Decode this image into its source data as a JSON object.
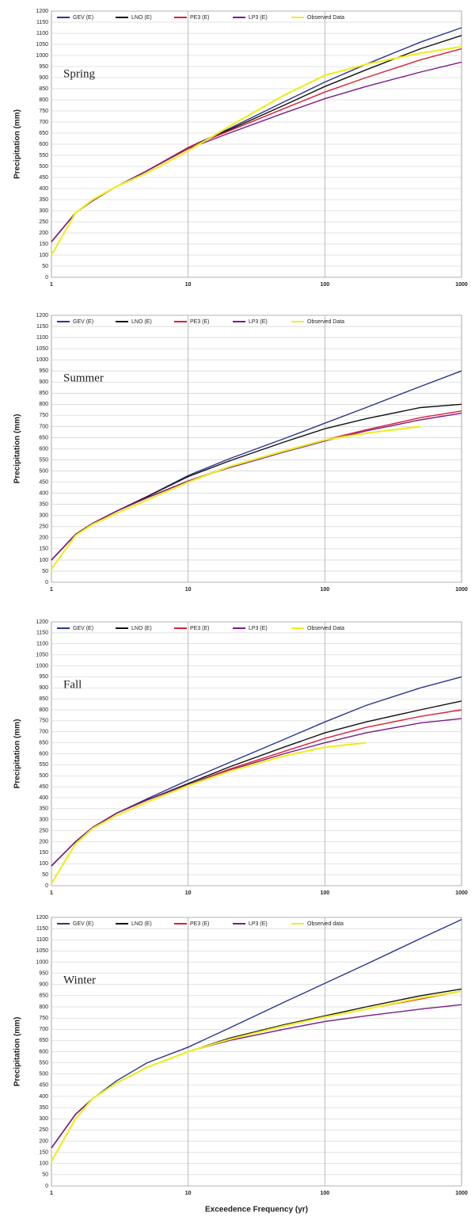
{
  "chart_data": [
    {
      "type": "line",
      "xscale": "log",
      "annotation": "Spring",
      "ylabel": "Precipitation (mm)",
      "grid": true,
      "legend": "top-left",
      "x": [
        1,
        1.5,
        2,
        3,
        5,
        10,
        20,
        50,
        100,
        200,
        500,
        1000
      ],
      "xlim": [
        1,
        1000
      ],
      "xticks": [
        1,
        10,
        100,
        1000
      ],
      "ylim": [
        0,
        1200
      ],
      "yticks": [
        0,
        50,
        100,
        150,
        200,
        250,
        300,
        350,
        400,
        450,
        500,
        550,
        600,
        650,
        700,
        750,
        800,
        850,
        900,
        950,
        1000,
        1050,
        1100,
        1150,
        1200
      ],
      "series": [
        {
          "name": "GEV (E)",
          "color": "#2a3590",
          "values": [
            160,
            290,
            345,
            410,
            480,
            585,
            670,
            790,
            880,
            960,
            1060,
            1125
          ]
        },
        {
          "name": "LNO (E)",
          "color": "#111111",
          "values": [
            160,
            290,
            345,
            410,
            480,
            585,
            665,
            775,
            860,
            935,
            1030,
            1090
          ]
        },
        {
          "name": "PE3 (E)",
          "color": "#d8203a",
          "values": [
            160,
            290,
            345,
            410,
            480,
            585,
            660,
            760,
            835,
            900,
            980,
            1030
          ]
        },
        {
          "name": "LP3 (E)",
          "color": "#7a1a8a",
          "values": [
            160,
            290,
            345,
            410,
            480,
            580,
            650,
            740,
            805,
            860,
            925,
            970
          ]
        },
        {
          "name": "Observed Data",
          "color": "#eeee22",
          "values": [
            100,
            290,
            350,
            410,
            470,
            570,
            680,
            820,
            910,
            960,
            1010,
            1040
          ]
        }
      ]
    },
    {
      "type": "line",
      "xscale": "log",
      "annotation": "Summer",
      "ylabel": "Precipitation (mm)",
      "grid": true,
      "legend": "top-left",
      "x": [
        1,
        1.5,
        2,
        3,
        5,
        10,
        20,
        50,
        100,
        200,
        500,
        1000
      ],
      "xlim": [
        1,
        1000
      ],
      "xticks": [
        1,
        10,
        100,
        1000
      ],
      "ylim": [
        0,
        1200
      ],
      "yticks": [
        0,
        50,
        100,
        150,
        200,
        250,
        300,
        350,
        400,
        450,
        500,
        550,
        600,
        650,
        700,
        750,
        800,
        850,
        900,
        950,
        1000,
        1050,
        1100,
        1150,
        1200
      ],
      "series": [
        {
          "name": "GEV (E)",
          "color": "#2a3590",
          "values": [
            100,
            215,
            265,
            320,
            385,
            480,
            555,
            645,
            715,
            785,
            880,
            950
          ]
        },
        {
          "name": "LNO (E)",
          "color": "#111111",
          "values": [
            100,
            215,
            265,
            320,
            385,
            475,
            545,
            630,
            690,
            735,
            785,
            800
          ]
        },
        {
          "name": "PE3 (E)",
          "color": "#d8203a",
          "values": [
            100,
            215,
            265,
            320,
            380,
            455,
            520,
            590,
            640,
            685,
            740,
            770
          ]
        },
        {
          "name": "LP3 (E)",
          "color": "#7a1a8a",
          "values": [
            100,
            215,
            265,
            320,
            380,
            455,
            515,
            585,
            635,
            680,
            730,
            760
          ]
        },
        {
          "name": "Observed Data",
          "color": "#eeee22",
          "values": [
            60,
            210,
            260,
            310,
            370,
            450,
            520,
            590,
            640,
            670,
            700,
            null
          ]
        }
      ]
    },
    {
      "type": "line",
      "xscale": "log",
      "annotation": "Fall",
      "ylabel": "Precipitation (mm)",
      "grid": true,
      "legend": "top-left",
      "x": [
        1,
        1.5,
        2,
        3,
        5,
        10,
        20,
        50,
        100,
        200,
        500,
        1000
      ],
      "xlim": [
        1,
        1000
      ],
      "xticks": [
        1,
        10,
        100,
        1000
      ],
      "ylim": [
        0,
        1200
      ],
      "yticks": [
        0,
        50,
        100,
        150,
        200,
        250,
        300,
        350,
        400,
        450,
        500,
        550,
        600,
        650,
        700,
        750,
        800,
        850,
        900,
        950,
        1000,
        1050,
        1100,
        1150,
        1200
      ],
      "series": [
        {
          "name": "GEV (E)",
          "color": "#2a3590",
          "values": [
            90,
            200,
            265,
            330,
            395,
            480,
            560,
            665,
            745,
            820,
            900,
            950
          ]
        },
        {
          "name": "LNO (E)",
          "color": "#111111",
          "values": [
            90,
            200,
            265,
            330,
            390,
            465,
            540,
            630,
            695,
            745,
            800,
            840
          ]
        },
        {
          "name": "PE3 (E)",
          "color": "#d8203a",
          "values": [
            90,
            200,
            265,
            330,
            390,
            460,
            530,
            610,
            670,
            720,
            770,
            800
          ]
        },
        {
          "name": "LP3 (E)",
          "color": "#7a1a8a",
          "values": [
            90,
            200,
            265,
            330,
            390,
            460,
            525,
            600,
            650,
            695,
            740,
            760
          ]
        },
        {
          "name": "Observed Data",
          "color": "#eeee22",
          "values": [
            10,
            190,
            260,
            320,
            380,
            455,
            520,
            590,
            630,
            650,
            null,
            null
          ]
        }
      ]
    },
    {
      "type": "line",
      "xscale": "log",
      "annotation": "Winter",
      "ylabel": "Precipitation (mm)",
      "xlabel": "Exceedence Frequency (yr)",
      "grid": true,
      "legend": "top-left",
      "x": [
        1,
        1.5,
        2,
        3,
        5,
        10,
        20,
        50,
        100,
        200,
        500,
        1000
      ],
      "xlim": [
        1,
        1000
      ],
      "xticks": [
        1,
        10,
        100,
        1000
      ],
      "ylim": [
        0,
        1200
      ],
      "yticks": [
        0,
        50,
        100,
        150,
        200,
        250,
        300,
        350,
        400,
        450,
        500,
        550,
        600,
        650,
        700,
        750,
        800,
        850,
        900,
        950,
        1000,
        1050,
        1100,
        1150,
        1200
      ],
      "series": [
        {
          "name": "GEV (E)",
          "color": "#2a3590",
          "values": [
            170,
            320,
            390,
            470,
            550,
            620,
            705,
            820,
            905,
            990,
            1105,
            1190
          ]
        },
        {
          "name": "LNO (E)",
          "color": "#111111",
          "values": [
            170,
            320,
            390,
            460,
            530,
            600,
            660,
            720,
            760,
            800,
            850,
            880
          ]
        },
        {
          "name": "PE3 (E)",
          "color": "#d8203a",
          "values": [
            170,
            320,
            390,
            460,
            530,
            600,
            655,
            715,
            755,
            790,
            835,
            870
          ]
        },
        {
          "name": "LP3 (E)",
          "color": "#7a1a8a",
          "values": [
            170,
            320,
            390,
            460,
            530,
            600,
            650,
            700,
            735,
            760,
            790,
            810
          ]
        },
        {
          "name": "Observed data",
          "color": "#eeee22",
          "values": [
            110,
            300,
            390,
            460,
            530,
            600,
            655,
            715,
            755,
            790,
            840,
            870
          ]
        }
      ]
    }
  ]
}
